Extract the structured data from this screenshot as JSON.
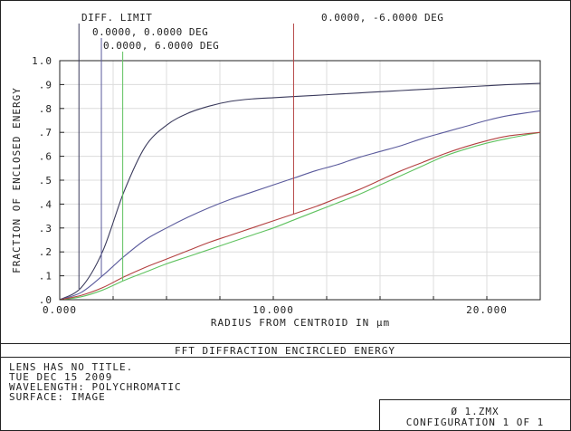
{
  "chart_data": {
    "type": "line",
    "xlabel": "RADIUS FROM CENTROID IN µm",
    "ylabel": "FRACTION OF ENCLOSED ENERGY",
    "xlim": [
      0,
      22.5
    ],
    "ylim": [
      0,
      1.0
    ],
    "x_ticks": [
      0,
      10,
      20
    ],
    "x_tick_labels": [
      "0.000",
      "10.000",
      "20.000"
    ],
    "y_ticks": [
      0,
      0.1,
      0.2,
      0.3,
      0.4,
      0.5,
      0.6,
      0.7,
      0.8,
      0.9,
      1.0
    ],
    "y_tick_labels": [
      ".0",
      ".1",
      ".2",
      ".3",
      ".4",
      ".5",
      ".6",
      ".7",
      ".8",
      ".9",
      "1.0"
    ],
    "grid": true,
    "series": [
      {
        "name": "DIFF. LIMIT",
        "color": "#3a3a5c",
        "marker_x": 0.9,
        "x": [
          0,
          1,
          2,
          3,
          4,
          5,
          6,
          7,
          8,
          9,
          10,
          11,
          12,
          13,
          14,
          15,
          16,
          17,
          18,
          19,
          20,
          21,
          22.5
        ],
        "y": [
          0,
          0.05,
          0.2,
          0.45,
          0.64,
          0.73,
          0.78,
          0.81,
          0.83,
          0.84,
          0.845,
          0.85,
          0.855,
          0.86,
          0.865,
          0.87,
          0.875,
          0.88,
          0.885,
          0.89,
          0.895,
          0.9,
          0.905
        ]
      },
      {
        "name": "0.0000, 0.0000 DEG",
        "color": "#5a5a9c",
        "marker_x": 1.95,
        "x": [
          0,
          1,
          2,
          3,
          4,
          5,
          6,
          7,
          8,
          9,
          10,
          11,
          12,
          13,
          14,
          15,
          16,
          17,
          18,
          19,
          20,
          21,
          22.5
        ],
        "y": [
          0,
          0.03,
          0.1,
          0.18,
          0.25,
          0.3,
          0.345,
          0.385,
          0.42,
          0.45,
          0.48,
          0.51,
          0.54,
          0.565,
          0.595,
          0.62,
          0.645,
          0.675,
          0.7,
          0.725,
          0.75,
          0.77,
          0.79
        ]
      },
      {
        "name": "0.0000, 6.0000 DEG",
        "color": "#5fc25f",
        "marker_x": 2.95,
        "x": [
          0,
          1,
          2,
          3,
          4,
          5,
          6,
          7,
          8,
          9,
          10,
          11,
          12,
          13,
          14,
          15,
          16,
          17,
          18,
          19,
          20,
          21,
          22.5
        ],
        "y": [
          0,
          0.012,
          0.04,
          0.08,
          0.115,
          0.15,
          0.18,
          0.21,
          0.24,
          0.27,
          0.3,
          0.335,
          0.37,
          0.405,
          0.44,
          0.48,
          0.52,
          0.56,
          0.6,
          0.63,
          0.655,
          0.675,
          0.7
        ]
      },
      {
        "name": "0.0000, -6.0000 DEG",
        "color": "#b34040",
        "marker_x": 10.95,
        "x": [
          0,
          1,
          2,
          3,
          4,
          5,
          6,
          7,
          8,
          9,
          10,
          11,
          12,
          13,
          14,
          15,
          16,
          17,
          18,
          19,
          20,
          21,
          22.5
        ],
        "y": [
          0,
          0.018,
          0.05,
          0.095,
          0.135,
          0.17,
          0.205,
          0.24,
          0.27,
          0.3,
          0.33,
          0.36,
          0.39,
          0.425,
          0.46,
          0.5,
          0.54,
          0.575,
          0.61,
          0.64,
          0.665,
          0.685,
          0.7
        ]
      }
    ]
  },
  "footer": {
    "title": "FFT DIFFRACTION ENCIRCLED ENERGY",
    "info_lines": [
      "LENS HAS NO TITLE.",
      "TUE DEC 15 2009",
      "WAVELENGTH: POLYCHROMATIC",
      "SURFACE: IMAGE"
    ],
    "file_name": "Ø 1.ZMX",
    "configuration": "CONFIGURATION 1 OF 1"
  },
  "colors": {
    "frame": "#222222",
    "grid": "#dcdcdc",
    "background": "#ffffff"
  }
}
